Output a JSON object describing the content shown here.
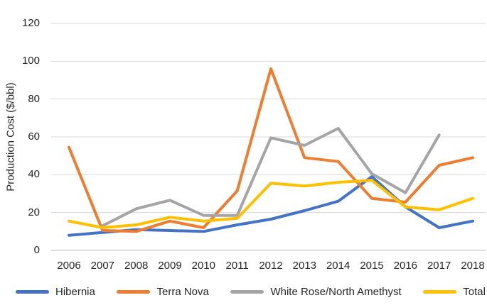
{
  "chart_data": {
    "type": "line",
    "title": "",
    "ylabel": "Production Cost ($/bbl)",
    "xlabel": "",
    "categories": [
      "2006",
      "2007",
      "2008",
      "2009",
      "2010",
      "2011",
      "2012",
      "2013",
      "2014",
      "2015",
      "2016",
      "2017",
      "2018"
    ],
    "yticks": [
      0,
      20,
      40,
      60,
      80,
      100,
      120
    ],
    "ylim": [
      0,
      120
    ],
    "grid": "horizontal",
    "legend_position": "bottom",
    "series": [
      {
        "name": "Hibernia",
        "color": "#4472C4",
        "values": [
          8,
          9.5,
          11,
          10.5,
          10,
          13.5,
          16.5,
          21,
          26,
          39,
          23,
          12,
          15.5
        ]
      },
      {
        "name": "Terra Nova",
        "color": "#ED7D31",
        "values": [
          54.5,
          10.5,
          10,
          15.5,
          12,
          31.5,
          96,
          49,
          47,
          27.5,
          25.5,
          45,
          49
        ]
      },
      {
        "name": "White Rose/North Amethyst",
        "color": "#A5A5A5",
        "values": [
          null,
          13,
          22,
          26.5,
          18.5,
          18.5,
          59.5,
          55.5,
          64.5,
          40.5,
          30.5,
          61,
          null
        ]
      },
      {
        "name": "Total",
        "color": "#FFC000",
        "values": [
          15.5,
          12,
          13.5,
          17.5,
          15.5,
          17,
          35.5,
          34,
          36,
          37,
          23,
          21.5,
          27.5
        ]
      }
    ],
    "colors": {
      "gridline": "#D9D9D9",
      "axis_line": "#BFBFBF",
      "text": "#262626"
    }
  }
}
